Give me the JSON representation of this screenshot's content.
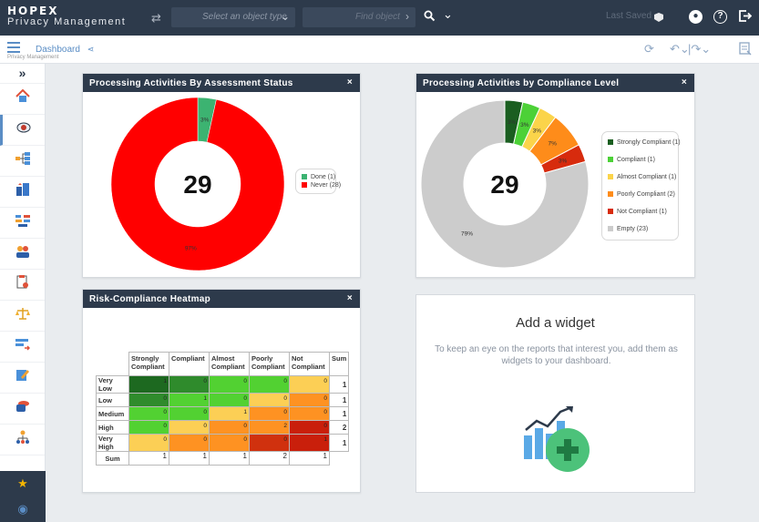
{
  "app": {
    "logo_line1": "HOPEX",
    "logo_line2": "Privacy Management",
    "last_saved": "Last Saved",
    "app_hint": "Privacy Management"
  },
  "search": {
    "object_type_placeholder": "Select an object type",
    "find_placeholder": "Find object"
  },
  "breadcrumb": {
    "label": "Dashboard"
  },
  "sidebar": {
    "items": [
      "collapse-icon",
      "home-icon",
      "privacy-icon",
      "org-chart-icon",
      "buildings-icon",
      "process-icon",
      "people-icon",
      "document-icon",
      "scales-icon",
      "flow-icon",
      "edit-icon",
      "database-icon",
      "hierarchy-icon"
    ],
    "bottom": [
      "star-icon",
      "help-icon"
    ]
  },
  "panels": {
    "assessment": {
      "title": "Processing Activities By Assessment Status",
      "total": "29",
      "chart_data": {
        "type": "pie",
        "title": "",
        "categories": [
          "Done",
          "Never"
        ],
        "values": [
          1,
          28
        ],
        "labels": [
          "3%",
          "97%"
        ],
        "colors": [
          "#3cb371",
          "#ff0000"
        ],
        "legend": [
          "Done (1)",
          "Never (28)"
        ],
        "legend_position": "right"
      }
    },
    "compliance": {
      "title": "Processing Activities by Compliance Level",
      "total": "29",
      "chart_data": {
        "type": "pie",
        "title": "",
        "categories": [
          "Strongly Compliant",
          "Compliant",
          "Almost Compliant",
          "Poorly Compliant",
          "Not Compliant",
          "Empty"
        ],
        "values": [
          1,
          1,
          1,
          2,
          1,
          23
        ],
        "labels": [
          "3%",
          "3%",
          "3%",
          "7%",
          "3%",
          "79%"
        ],
        "colors": [
          "#1a5e20",
          "#4cd137",
          "#fbd44a",
          "#fe8c1a",
          "#d72b0d",
          "#cccccc"
        ],
        "legend": [
          "Strongly Compliant (1)",
          "Compliant (1)",
          "Almost Compliant (1)",
          "Poorly Compliant (2)",
          "Not Compliant (1)",
          "Empty (23)"
        ],
        "legend_position": "right"
      }
    },
    "heatmap": {
      "title": "Risk-Compliance Heatmap",
      "chart_data": {
        "type": "heatmap",
        "columns": [
          "Strongly Compliant",
          "Compliant",
          "Almost Compliant",
          "Poorly Compliant",
          "Not Compliant"
        ],
        "sum_label": "Sum",
        "rows": [
          {
            "label": "Very Low",
            "values": [
              1,
              0,
              0,
              0,
              0
            ],
            "colors": [
              "#1d6920",
              "#2f8b2c",
              "#52d132",
              "#52d132",
              "#fccf55"
            ],
            "sum": 1
          },
          {
            "label": "Low",
            "values": [
              0,
              1,
              0,
              0,
              0
            ],
            "colors": [
              "#2f8b2c",
              "#52d132",
              "#52d132",
              "#fccf55",
              "#fe9222"
            ],
            "sum": 1
          },
          {
            "label": "Medium",
            "values": [
              0,
              0,
              1,
              0,
              0
            ],
            "colors": [
              "#52d132",
              "#52d132",
              "#fccf55",
              "#fe9222",
              "#fe9222"
            ],
            "sum": 1
          },
          {
            "label": "High",
            "values": [
              0,
              0,
              0,
              2,
              0
            ],
            "colors": [
              "#52d132",
              "#fccf55",
              "#fe9222",
              "#fe9222",
              "#c91f0b"
            ],
            "sum": 2
          },
          {
            "label": "Very High",
            "values": [
              0,
              0,
              0,
              0,
              1
            ],
            "colors": [
              "#fccf55",
              "#fe9222",
              "#fe9222",
              "#d0310e",
              "#c91f0b"
            ],
            "sum": 1
          }
        ],
        "col_sums": [
          1,
          1,
          1,
          2,
          1
        ]
      }
    }
  },
  "add_widget": {
    "title": "Add a widget",
    "description": "To keep an eye on the reports that interest you, add them as widgets to your dashboard."
  },
  "close_glyph": "×"
}
